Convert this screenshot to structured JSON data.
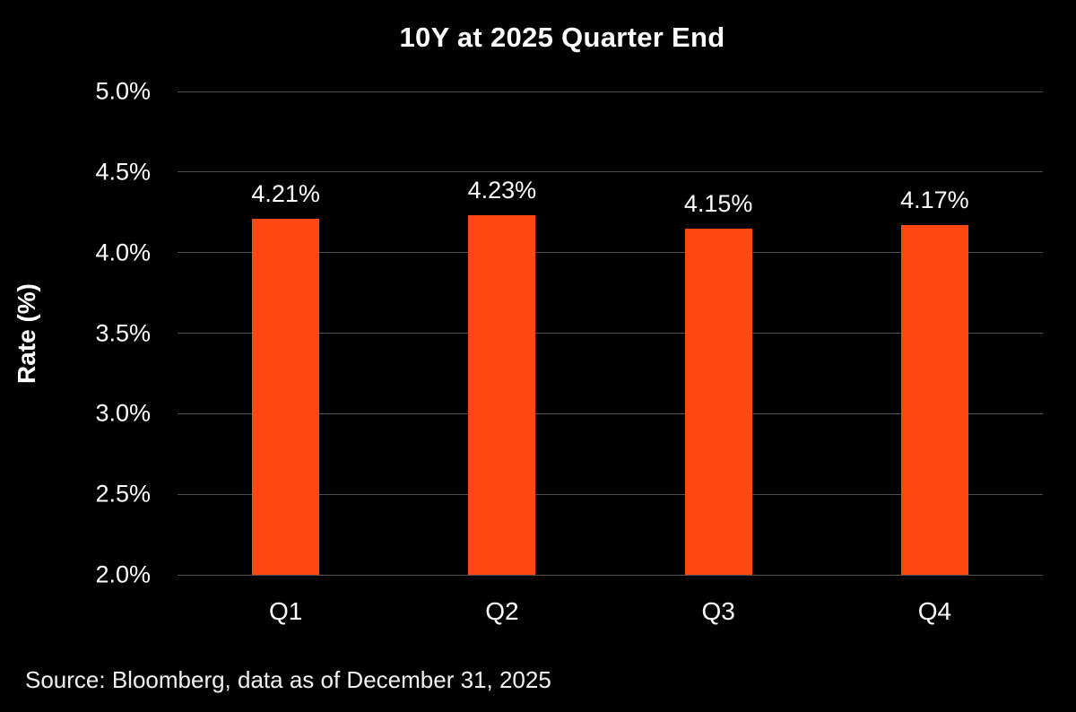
{
  "chart_data": {
    "type": "bar",
    "title": "10Y at 2025 Quarter End",
    "xlabel": "",
    "ylabel": "Rate (%)",
    "categories": [
      "Q1",
      "Q2",
      "Q3",
      "Q4"
    ],
    "values": [
      4.21,
      4.23,
      4.15,
      4.17
    ],
    "value_labels": [
      "4.21%",
      "4.23%",
      "4.15%",
      "4.17%"
    ],
    "ylim": [
      2.0,
      5.0
    ],
    "yticks": [
      {
        "value": 5.0,
        "label": "5.0%"
      },
      {
        "value": 4.5,
        "label": "4.5%"
      },
      {
        "value": 4.0,
        "label": "4.0%"
      },
      {
        "value": 3.5,
        "label": "3.5%"
      },
      {
        "value": 3.0,
        "label": "3.0%"
      },
      {
        "value": 2.5,
        "label": "2.5%"
      },
      {
        "value": 2.0,
        "label": "2.0%"
      }
    ],
    "grid": true,
    "legend": "none",
    "bars_baseline": 2.0,
    "source": "Source: Bloomberg, data as of December 31, 2025",
    "colors": {
      "background": "#000000",
      "bar": "#FF4713",
      "text": "#FFFFFF",
      "gridline": "#4E4E4E"
    }
  }
}
